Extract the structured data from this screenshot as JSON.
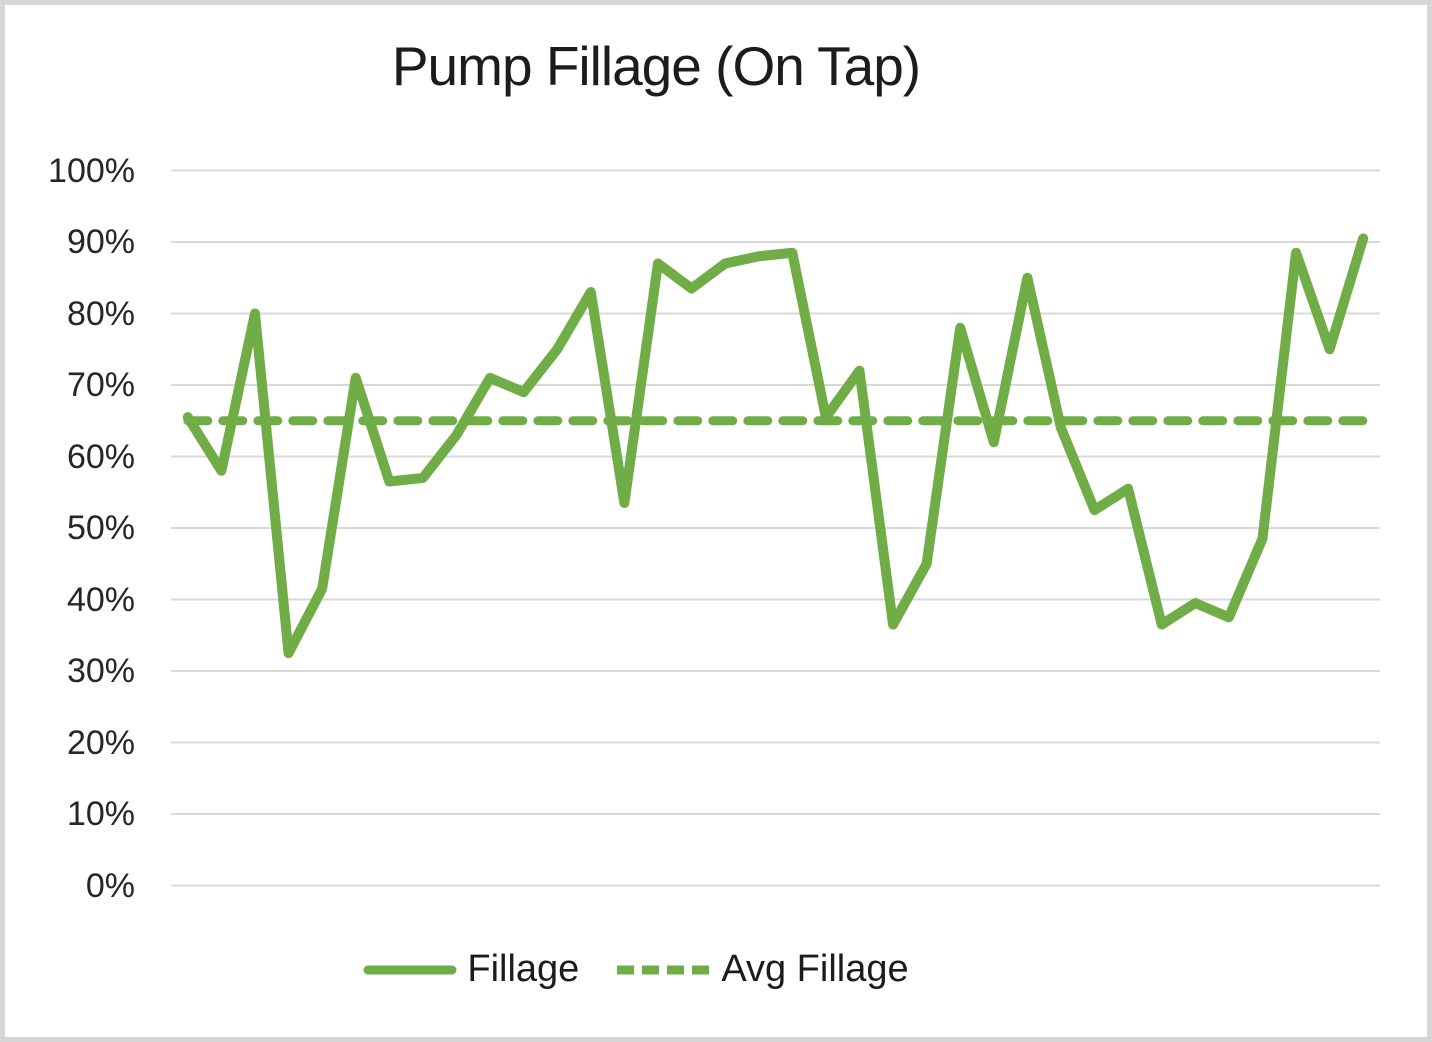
{
  "title": "Pump Fillage (On Tap)",
  "colors": {
    "series_green": "#70AD47",
    "gridline": "#D9D9D9",
    "frame_border": "#D6D6D6",
    "text": "#262626"
  },
  "y_axis": {
    "tick_labels": [
      "100%",
      "90%",
      "80%",
      "70%",
      "60%",
      "50%",
      "40%",
      "30%",
      "20%",
      "10%",
      "0%"
    ]
  },
  "legend": {
    "fillage_label": "Fillage",
    "avg_fillage_label": "Avg Fillage"
  },
  "chart_data": {
    "type": "line",
    "title": "Pump Fillage (On Tap)",
    "ylabel": "",
    "xlabel": "",
    "ylim": [
      0,
      100
    ],
    "y_ticks_percent": [
      100,
      90,
      80,
      70,
      60,
      50,
      40,
      30,
      20,
      10,
      0
    ],
    "grid": "horizontal",
    "legend_position": "bottom",
    "x_axis_labels_visible": false,
    "series": [
      {
        "name": "Fillage",
        "style": "solid",
        "values_percent": [
          65.5,
          58,
          80,
          32.5,
          41.5,
          71,
          56.5,
          57,
          63,
          71,
          69,
          75,
          83,
          53.5,
          87,
          83.5,
          87,
          88,
          88.5,
          65.5,
          72,
          36.5,
          45,
          78,
          62,
          85,
          64,
          52.5,
          55.5,
          36.5,
          39.5,
          37.5,
          48.5,
          88.5,
          75,
          90.5
        ]
      },
      {
        "name": "Avg Fillage",
        "style": "dashed",
        "constant_value_percent": 65
      }
    ]
  }
}
